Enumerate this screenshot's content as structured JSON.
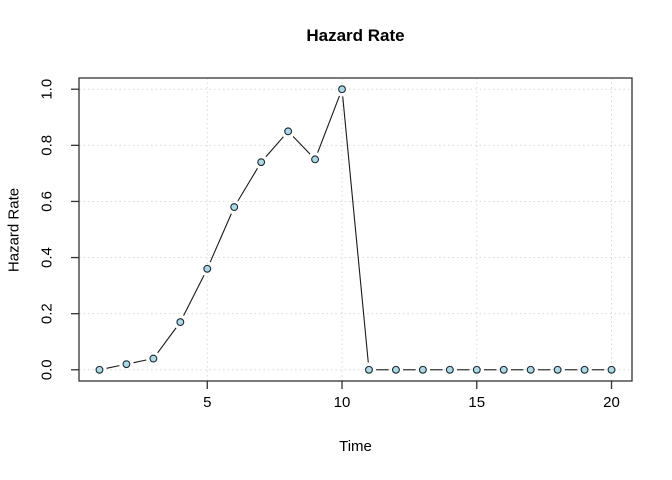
{
  "chart_data": {
    "type": "line",
    "title": "Hazard Rate",
    "xlabel": "Time",
    "ylabel": "Hazard Rate",
    "x": [
      1,
      2,
      3,
      4,
      5,
      6,
      7,
      8,
      9,
      10,
      11,
      12,
      13,
      14,
      15,
      16,
      17,
      18,
      19,
      20
    ],
    "y": [
      0.0,
      0.02,
      0.04,
      0.17,
      0.36,
      0.58,
      0.74,
      0.85,
      0.75,
      1.0,
      0.0,
      0.0,
      0.0,
      0.0,
      0.0,
      0.0,
      0.0,
      0.0,
      0.0,
      0.0
    ],
    "xlim": [
      1,
      20
    ],
    "ylim": [
      0,
      1
    ],
    "x_ticks": [
      5,
      10,
      15,
      20
    ],
    "x_tick_labels": [
      "5",
      "10",
      "15",
      "20"
    ],
    "y_ticks": [
      0.0,
      0.2,
      0.4,
      0.6,
      0.8,
      1.0
    ],
    "y_tick_labels": [
      "0.0",
      "0.2",
      "0.4",
      "0.6",
      "0.8",
      "1.0"
    ],
    "grid": true,
    "legend": "none",
    "marker": "circle",
    "colors": {
      "line": "#1a1a1a",
      "point_fill": "#ADD8E6",
      "point_stroke": "#1c2b33",
      "grid": "#d9d9d9",
      "axis": "#333333",
      "text": "#000000",
      "background": "#ffffff"
    }
  }
}
